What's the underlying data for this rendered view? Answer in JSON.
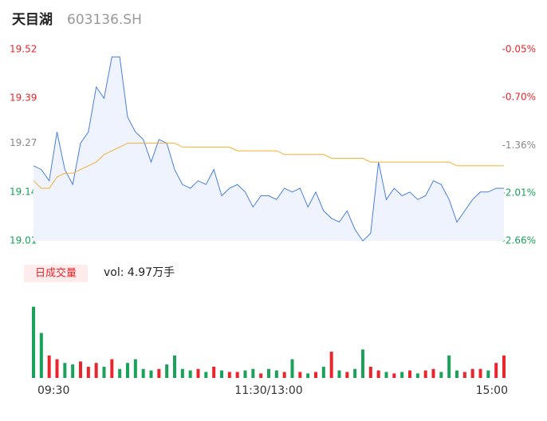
{
  "header": {
    "name": "天目湖",
    "code": "603136.SH"
  },
  "chart_data": [
    {
      "type": "line",
      "xlim": [
        0,
        240
      ],
      "xticks": [
        {
          "value": 0,
          "label": "09:30"
        },
        {
          "value": 120,
          "label": "11:30/13:00"
        },
        {
          "value": 240,
          "label": "15:00"
        }
      ],
      "ylim": [
        19.01,
        19.52
      ],
      "yticks": [
        19.01,
        19.14,
        19.27,
        19.39,
        19.52
      ],
      "ytick_colors": [
        "#1aa15a",
        "#1aa15a",
        "#888888",
        "#e8262c",
        "#e8262c"
      ],
      "y2lim": [
        -2.66,
        -0.05
      ],
      "y2ticks": [
        {
          "value": -2.66,
          "label": "-2.66%"
        },
        {
          "value": -2.01,
          "label": "-2.01%"
        },
        {
          "value": -1.36,
          "label": "-1.36%"
        },
        {
          "value": -0.7,
          "label": "-0.70%"
        },
        {
          "value": -0.05,
          "label": "-0.05%"
        }
      ],
      "y2tick_colors": [
        "#1aa15a",
        "#1aa15a",
        "#888888",
        "#e8262c",
        "#e8262c"
      ],
      "x": [
        0,
        4,
        8,
        12,
        16,
        20,
        24,
        28,
        32,
        36,
        40,
        44,
        48,
        52,
        56,
        60,
        64,
        68,
        72,
        76,
        80,
        84,
        88,
        92,
        96,
        100,
        104,
        108,
        112,
        116,
        120,
        124,
        128,
        132,
        136,
        140,
        144,
        148,
        152,
        156,
        160,
        164,
        168,
        172,
        176,
        180,
        184,
        188,
        192,
        196,
        200,
        204,
        208,
        212,
        216,
        220,
        224,
        228,
        232,
        236,
        240
      ],
      "series": [
        {
          "color": "#4a7fe0",
          "values": [
            19.21,
            19.2,
            19.17,
            19.3,
            19.2,
            19.16,
            19.27,
            19.3,
            19.42,
            19.39,
            19.5,
            19.5,
            19.34,
            19.3,
            19.28,
            19.22,
            19.28,
            19.27,
            19.2,
            19.16,
            19.15,
            19.17,
            19.16,
            19.2,
            19.13,
            19.15,
            19.16,
            19.14,
            19.1,
            19.13,
            19.13,
            19.12,
            19.15,
            19.14,
            19.15,
            19.1,
            19.14,
            19.09,
            19.07,
            19.06,
            19.09,
            19.04,
            19.01,
            19.03,
            19.22,
            19.12,
            19.15,
            19.13,
            19.14,
            19.12,
            19.13,
            19.17,
            19.16,
            19.12,
            19.06,
            19.09,
            19.12,
            19.14,
            19.14,
            19.15,
            19.15
          ]
        },
        {
          "color": "#f5b031",
          "values": [
            19.17,
            19.15,
            19.15,
            19.18,
            19.19,
            19.19,
            19.2,
            19.21,
            19.22,
            19.24,
            19.25,
            19.26,
            19.27,
            19.27,
            19.27,
            19.27,
            19.27,
            19.27,
            19.27,
            19.26,
            19.26,
            19.26,
            19.26,
            19.26,
            19.26,
            19.26,
            19.25,
            19.25,
            19.25,
            19.25,
            19.25,
            19.25,
            19.24,
            19.24,
            19.24,
            19.24,
            19.24,
            19.24,
            19.23,
            19.23,
            19.23,
            19.23,
            19.23,
            19.22,
            19.22,
            19.22,
            19.22,
            19.22,
            19.22,
            19.22,
            19.22,
            19.22,
            19.22,
            19.22,
            19.21,
            19.21,
            19.21,
            19.21,
            19.21,
            19.21,
            19.21
          ]
        }
      ]
    },
    {
      "type": "bar",
      "legend": "日成交量",
      "subtitle": "vol: 4.97万手",
      "ylim": [
        0,
        100
      ],
      "values": [
        95,
        60,
        30,
        25,
        20,
        18,
        22,
        15,
        20,
        15,
        25,
        12,
        20,
        25,
        12,
        10,
        12,
        18,
        30,
        12,
        10,
        12,
        8,
        15,
        10,
        8,
        8,
        10,
        12,
        6,
        12,
        10,
        8,
        25,
        8,
        6,
        8,
        15,
        35,
        10,
        8,
        12,
        38,
        15,
        10,
        8,
        6,
        8,
        10,
        6,
        10,
        12,
        8,
        30,
        10,
        8,
        12,
        12,
        10,
        20,
        30
      ],
      "colors": [
        "#1aa15a",
        "#1aa15a",
        "#e8262c",
        "#e8262c",
        "#1aa15a",
        "#1aa15a",
        "#e8262c",
        "#e8262c",
        "#e8262c",
        "#1aa15a",
        "#e8262c",
        "#1aa15a",
        "#1aa15a",
        "#1aa15a",
        "#1aa15a",
        "#1aa15a",
        "#e8262c",
        "#1aa15a",
        "#1aa15a",
        "#1aa15a",
        "#1aa15a",
        "#e8262c",
        "#1aa15a",
        "#e8262c",
        "#1aa15a",
        "#e8262c",
        "#e8262c",
        "#1aa15a",
        "#1aa15a",
        "#e8262c",
        "#1aa15a",
        "#1aa15a",
        "#e8262c",
        "#1aa15a",
        "#e8262c",
        "#1aa15a",
        "#e8262c",
        "#1aa15a",
        "#e8262c",
        "#1aa15a",
        "#e8262c",
        "#1aa15a",
        "#1aa15a",
        "#e8262c",
        "#e8262c",
        "#1aa15a",
        "#e8262c",
        "#1aa15a",
        "#e8262c",
        "#1aa15a",
        "#e8262c",
        "#e8262c",
        "#1aa15a",
        "#1aa15a",
        "#1aa15a",
        "#e8262c",
        "#e8262c",
        "#e8262c",
        "#1aa15a",
        "#e8262c",
        "#e8262c"
      ]
    }
  ]
}
